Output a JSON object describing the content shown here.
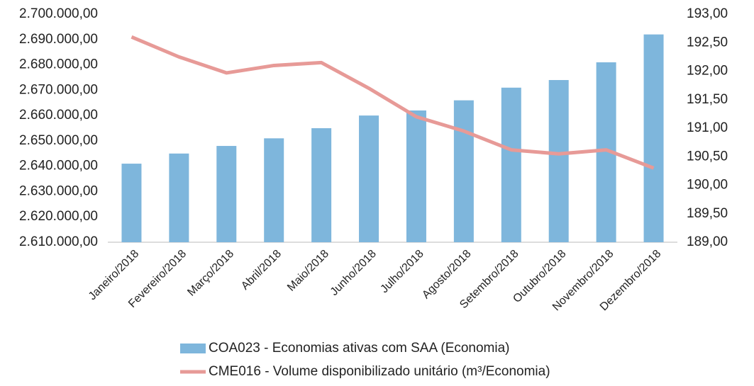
{
  "chart_data": {
    "type": "bar_line",
    "categories": [
      "Janeiro/2018",
      "Fevereiro/2018",
      "Março/2018",
      "Abril/2018",
      "Maio/2018",
      "Junho/2018",
      "Julho/2018",
      "Agosto/2018",
      "Setembro/2018",
      "Outubro/2018",
      "Novembro/2018",
      "Dezembro/2018"
    ],
    "series": [
      {
        "name": "COA023 - Economias ativas com SAA (Economia)",
        "type": "bar",
        "color": "#7eb6dc",
        "values": [
          2641000,
          2645000,
          2648000,
          2651000,
          2655000,
          2660000,
          2662000,
          2666000,
          2671000,
          2674000,
          2681000,
          2692000
        ]
      },
      {
        "name": "CME016 - Volume disponibilizado unitário (m³/Economia)",
        "type": "line",
        "color": "#e79a97",
        "axis": "y2",
        "values": [
          192.6,
          192.25,
          191.97,
          192.1,
          192.15,
          191.7,
          191.2,
          190.95,
          190.62,
          190.55,
          190.62,
          190.3
        ]
      }
    ],
    "ylim": [
      2610000,
      2700000
    ],
    "yticks": [
      {
        "value": 2610000,
        "label": "2.610.000,00"
      },
      {
        "value": 2620000,
        "label": "2.620.000,00"
      },
      {
        "value": 2630000,
        "label": "2.630.000,00"
      },
      {
        "value": 2640000,
        "label": "2.640.000,00"
      },
      {
        "value": 2650000,
        "label": "2.650.000,00"
      },
      {
        "value": 2660000,
        "label": "2.660.000,00"
      },
      {
        "value": 2670000,
        "label": "2.670.000,00"
      },
      {
        "value": 2680000,
        "label": "2.680.000,00"
      },
      {
        "value": 2690000,
        "label": "2.690.000,00"
      },
      {
        "value": 2700000,
        "label": "2.700.000,00"
      }
    ],
    "y2lim": [
      189,
      193
    ],
    "y2ticks": [
      {
        "value": 189,
        "label": "189,00"
      },
      {
        "value": 189.5,
        "label": "189,50"
      },
      {
        "value": 190,
        "label": "190,00"
      },
      {
        "value": 190.5,
        "label": "190,50"
      },
      {
        "value": 191,
        "label": "191,00"
      },
      {
        "value": 191.5,
        "label": "191,50"
      },
      {
        "value": 192,
        "label": "192,00"
      },
      {
        "value": 192.5,
        "label": "192,50"
      },
      {
        "value": 193,
        "label": "193,00"
      }
    ],
    "legend": "bottom"
  }
}
